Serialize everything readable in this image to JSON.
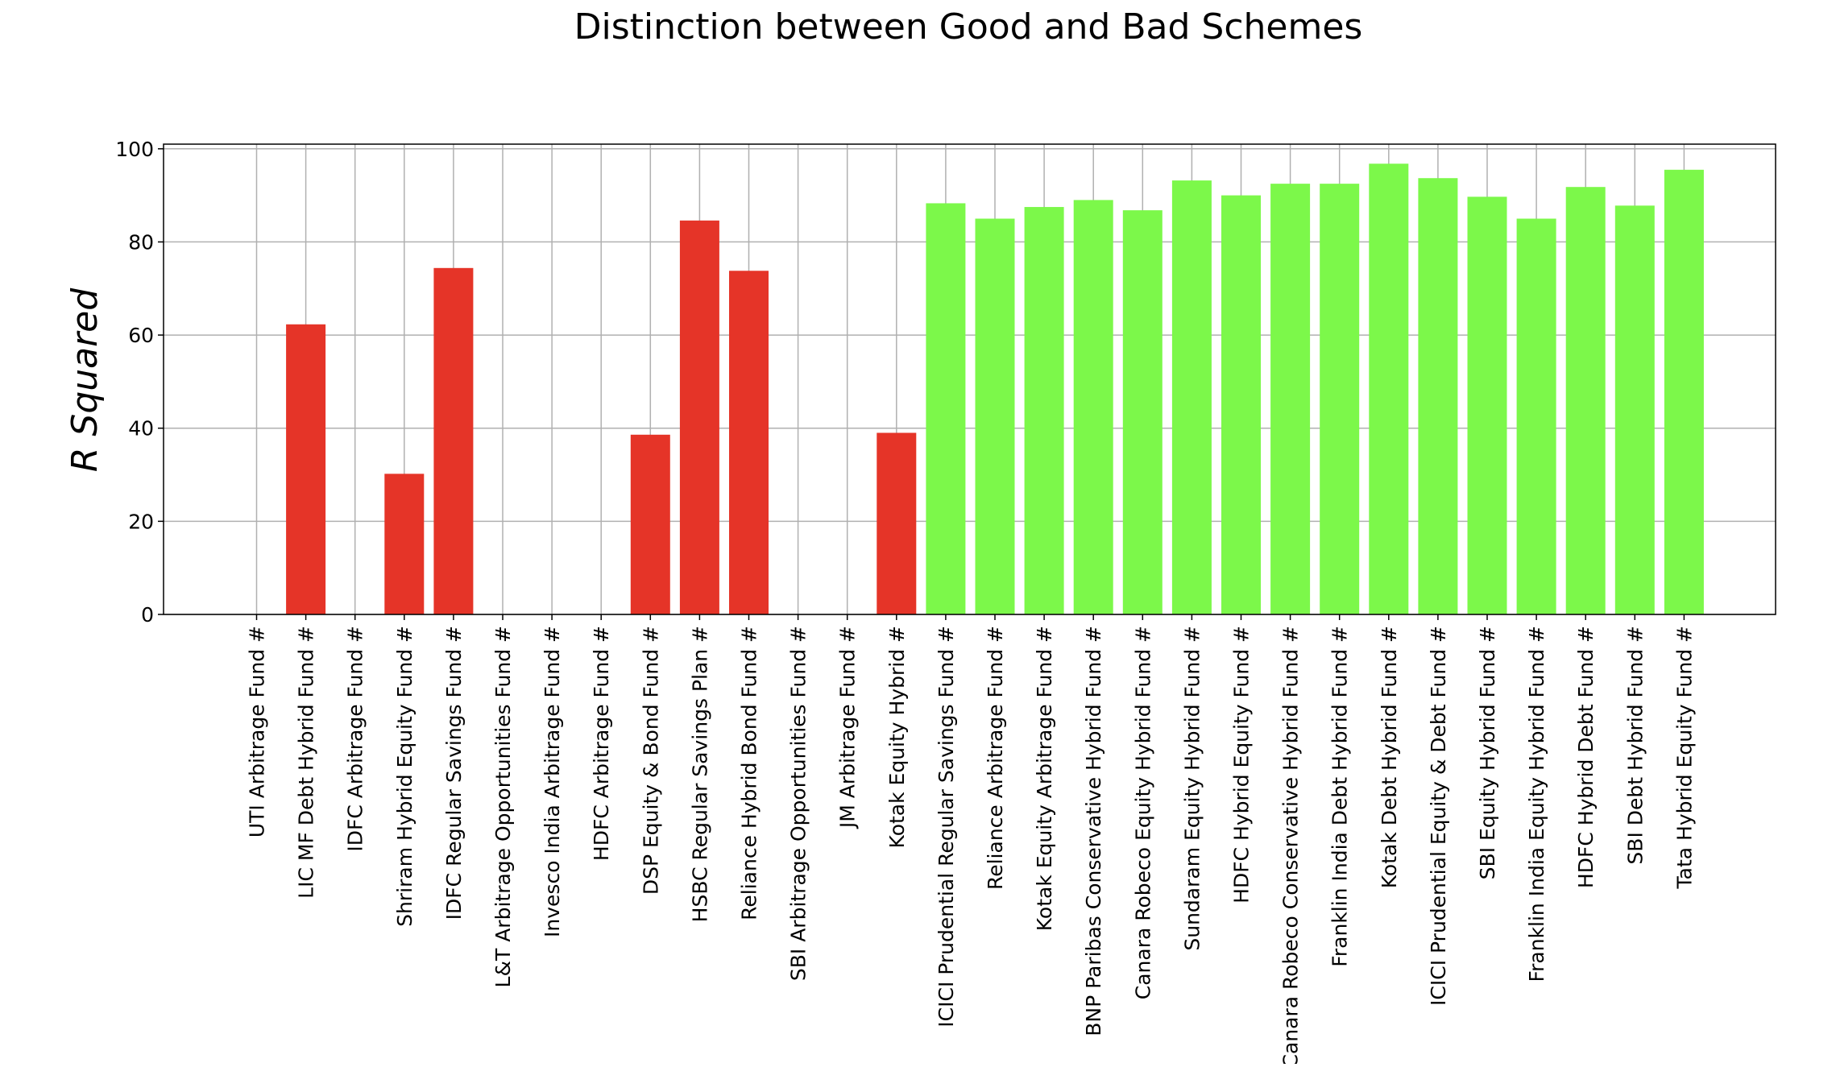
{
  "chart_data": {
    "type": "bar",
    "title": "Distinction between Good and Bad Schemes",
    "xlabel": "",
    "ylabel": "R Squared",
    "ylim": [
      0,
      101
    ],
    "yticks": [
      0,
      20,
      40,
      60,
      80,
      100
    ],
    "grid": true,
    "categories": [
      "UTI Arbitrage Fund #",
      "LIC MF Debt Hybrid Fund #",
      "IDFC Arbitrage Fund #",
      "Shriram Hybrid Equity Fund #",
      "IDFC Regular Savings Fund #",
      "L&T Arbitrage Opportunities Fund #",
      "Invesco India Arbitrage Fund #",
      "HDFC Arbitrage Fund #",
      "DSP Equity & Bond Fund #",
      "HSBC Regular Savings Plan #",
      "Reliance Hybrid Bond Fund #",
      "SBI Arbitrage Opportunities Fund #",
      "JM Arbitrage Fund #",
      "Kotak Equity Hybrid #",
      "ICICI Prudential Regular Savings Fund #",
      "Reliance Arbitrage Fund #",
      "Kotak Equity Arbitrage Fund #",
      "BNP Paribas Conservative Hybrid Fund #",
      "Canara Robeco Equity Hybrid Fund #",
      "Sundaram Equity Hybrid Fund #",
      "HDFC Hybrid Equity Fund #",
      "Canara Robeco Conservative Hybrid Fund #",
      "Franklin India Debt Hybrid Fund #",
      "Kotak Debt Hybrid Fund #",
      "ICICI Prudential Equity & Debt Fund #",
      "SBI Equity Hybrid Fund #",
      "Franklin India Equity Hybrid Fund #",
      "HDFC Hybrid Debt Fund #",
      "SBI Debt Hybrid Fund #",
      "Tata Hybrid Equity Fund #"
    ],
    "values": [
      0,
      62.3,
      0,
      30.2,
      74.4,
      0,
      0,
      0,
      38.6,
      84.6,
      73.8,
      0,
      0,
      39.0,
      88.3,
      85.0,
      87.5,
      89.0,
      86.8,
      93.2,
      90.0,
      92.5,
      92.5,
      96.8,
      93.7,
      89.7,
      85.0,
      91.8,
      87.8,
      95.5
    ],
    "colors": [
      "#e53428",
      "#e53428",
      "#e53428",
      "#e53428",
      "#e53428",
      "#e53428",
      "#e53428",
      "#e53428",
      "#e53428",
      "#e53428",
      "#e53428",
      "#e53428",
      "#e53428",
      "#e53428",
      "#7cf84a",
      "#7cf84a",
      "#7cf84a",
      "#7cf84a",
      "#7cf84a",
      "#7cf84a",
      "#7cf84a",
      "#7cf84a",
      "#7cf84a",
      "#7cf84a",
      "#7cf84a",
      "#7cf84a",
      "#7cf84a",
      "#7cf84a",
      "#7cf84a",
      "#7cf84a"
    ]
  }
}
